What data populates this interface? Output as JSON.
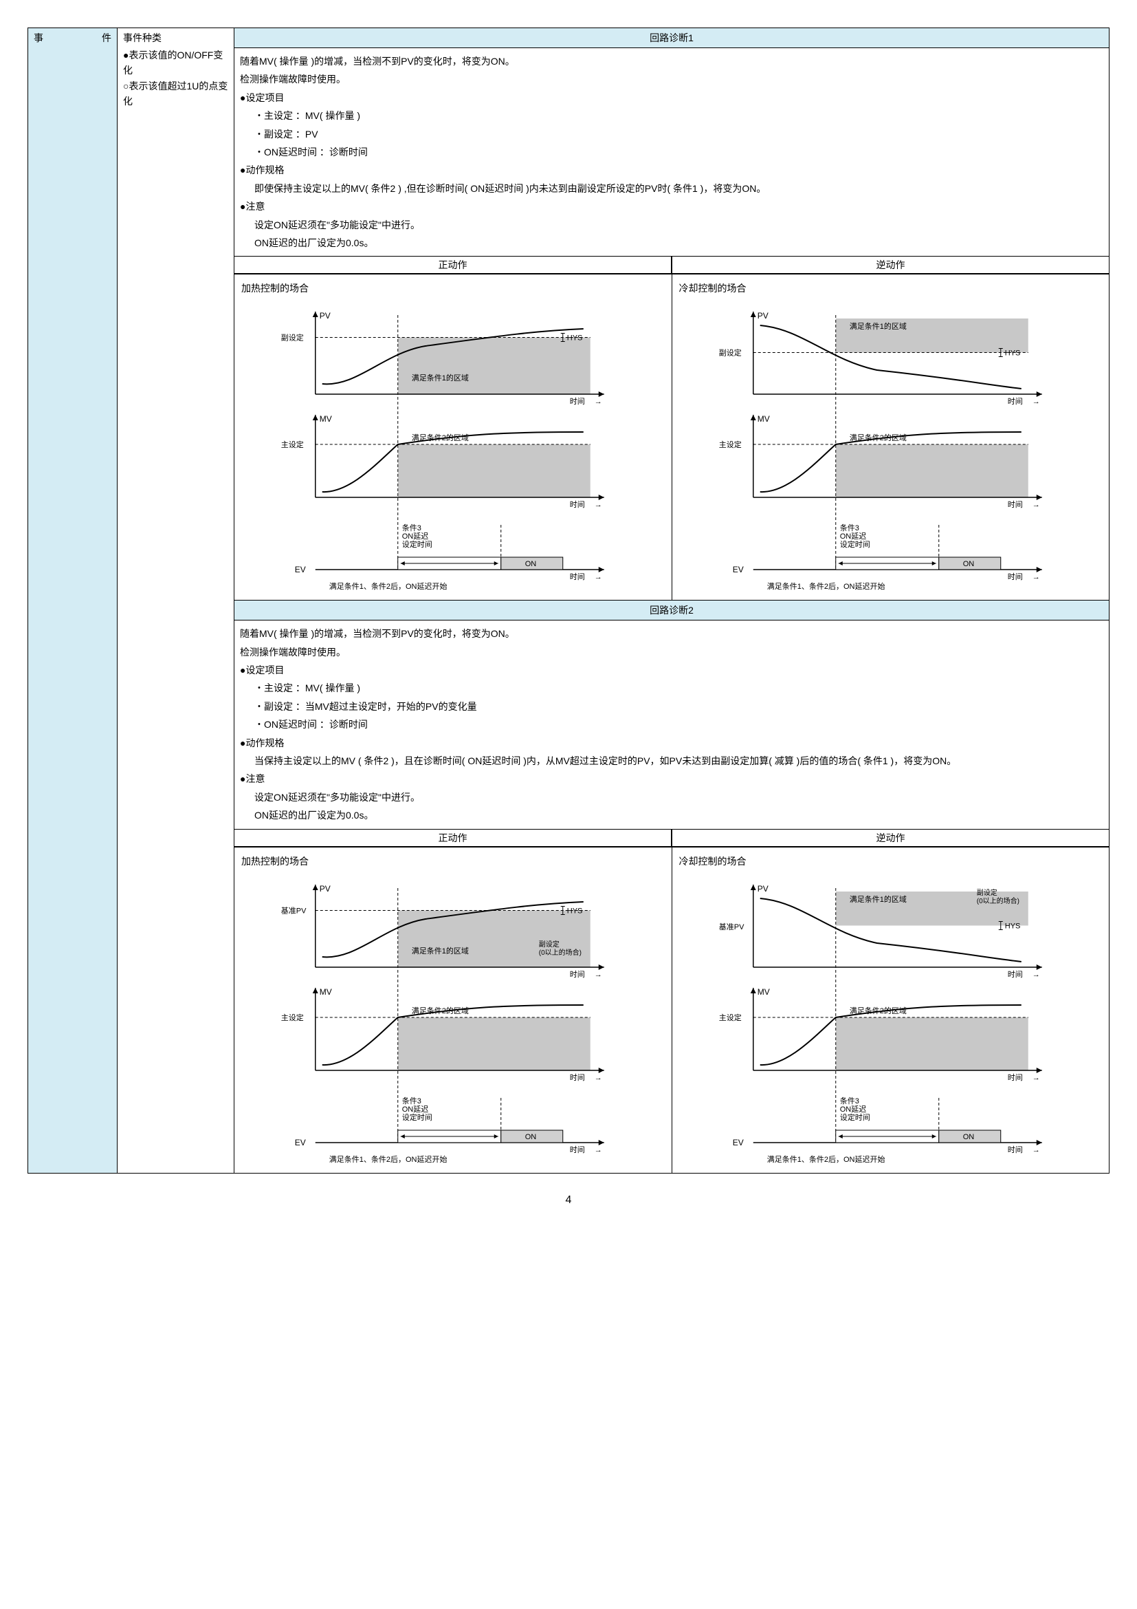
{
  "page_number": "4",
  "table": {
    "col1_label_a": "事",
    "col1_label_b": "件",
    "col2_header": "事件种类",
    "col2_body": [
      "●表示该值的ON/OFF变化",
      "○表示该值超过1U的点变化"
    ]
  },
  "section1": {
    "header": "回路诊断1",
    "lines": [
      {
        "t": "随着MV( 操作量 )的增减，当检测不到PV的变化时，将变为ON。",
        "cls": ""
      },
      {
        "t": "检测操作端故障时使用。",
        "cls": ""
      },
      {
        "t": "●设定项目",
        "cls": ""
      },
      {
        "t": "・主设定 ：MV( 操作量 )",
        "cls": "indent1"
      },
      {
        "t": "・副设定 ：PV",
        "cls": "indent1"
      },
      {
        "t": "・ON延迟时间 ：诊断时间",
        "cls": "indent1"
      },
      {
        "t": "●动作规格",
        "cls": ""
      },
      {
        "t": "即使保持主设定以上的MV( 条件2 ) ,但在诊断时间( ON延迟时间 )内未达到由副设定所设定的PV时( 条件1 )，将变为ON。",
        "cls": "indent1"
      },
      {
        "t": "●注意",
        "cls": ""
      },
      {
        "t": "设定ON延迟须在\"多功能设定\"中进行。",
        "cls": "indent1"
      },
      {
        "t": "ON延迟的出厂设定为0.0s。",
        "cls": "indent1"
      }
    ],
    "chart_left_title": "正动作",
    "chart_right_title": "逆动作",
    "chart_left_subtitle": "加热控制的场合",
    "chart_right_subtitle": "冷却控制的场合"
  },
  "section2": {
    "header": "回路诊断2",
    "lines": [
      {
        "t": "随着MV( 操作量 )的增减，当检测不到PV的变化时，将变为ON。",
        "cls": ""
      },
      {
        "t": "检测操作端故障时使用。",
        "cls": ""
      },
      {
        "t": "●设定项目",
        "cls": ""
      },
      {
        "t": "・主设定 ：MV( 操作量 )",
        "cls": "indent1"
      },
      {
        "t": "・副设定 ：当MV超过主设定时，开始的PV的变化量",
        "cls": "indent1"
      },
      {
        "t": "・ON延迟时间 ：诊断时间",
        "cls": "indent1"
      },
      {
        "t": "●动作规格",
        "cls": ""
      },
      {
        "t": "当保持主设定以上的MV ( 条件2 )，且在诊断时间( ON延迟时间 )内，从MV超过主设定时的PV，如PV未达到由副设定加算( 减算 )后的值的场合( 条件1 )，将变为ON。",
        "cls": "indent1"
      },
      {
        "t": "●注意",
        "cls": ""
      },
      {
        "t": "设定ON延迟须在\"多功能设定\"中进行。",
        "cls": "indent1"
      },
      {
        "t": "ON延迟的出厂设定为0.0s。",
        "cls": "indent1"
      }
    ],
    "chart_left_title": "正动作",
    "chart_right_title": "逆动作",
    "chart_left_subtitle": "加热控制的场合",
    "chart_right_subtitle": "冷却控制的场合"
  },
  "chart_labels": {
    "pv": "PV",
    "mv": "MV",
    "ev": "EV",
    "time": "时间",
    "sub_set": "副设定",
    "main_set": "主设定",
    "base_pv": "基准PV",
    "hys": "HYS",
    "cond1_region": "满足条件1的区域",
    "cond2_region": "满足条件2的区域",
    "cond3": "条件3",
    "on_delay": "ON延迟",
    "set_time": "设定时间",
    "on": "ON",
    "footer": "满足条件1、条件2后，ON延迟开始",
    "sub_set_note": "副设定\n(0以上的场合)",
    "arrow": "→"
  },
  "style": {
    "region_fill": "#c8c8c8",
    "region_fill_light": "#d0d0d0",
    "header_bg": "#d4ecf4",
    "axis_color": "#000000",
    "dash": "4,3",
    "font_small": 11,
    "font_med": 12
  }
}
